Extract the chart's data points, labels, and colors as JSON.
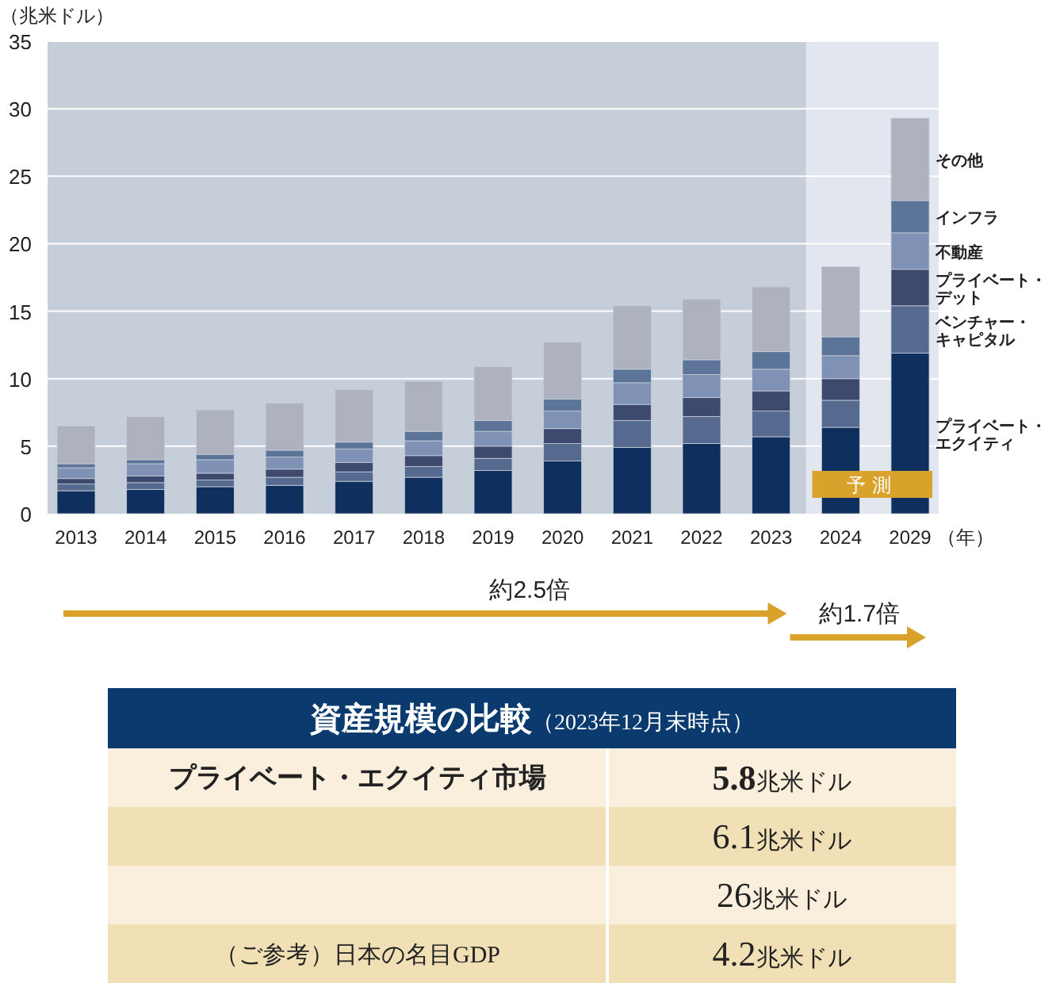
{
  "chart_data": {
    "type": "bar",
    "stacked": true,
    "ylabel": "（兆米ドル）",
    "xlabel": "（年）",
    "categories": [
      "2013",
      "2014",
      "2015",
      "2016",
      "2017",
      "2018",
      "2019",
      "2020",
      "2021",
      "2022",
      "2023",
      "2024",
      "2029"
    ],
    "series": [
      {
        "name": "プライベート・エクイティ",
        "color": "#0f2f5e",
        "values": [
          1.7,
          1.8,
          2.0,
          2.1,
          2.4,
          2.7,
          3.2,
          3.9,
          4.9,
          5.2,
          5.7,
          6.4,
          11.9
        ]
      },
      {
        "name": "ベンチャー・キャピタル",
        "color": "#56698e",
        "values": [
          0.5,
          0.5,
          0.5,
          0.6,
          0.7,
          0.8,
          0.9,
          1.3,
          2.0,
          2.0,
          1.9,
          2.0,
          3.5
        ]
      },
      {
        "name": "プライベート・デット",
        "color": "#3d4a6e",
        "values": [
          0.4,
          0.5,
          0.5,
          0.6,
          0.7,
          0.8,
          0.9,
          1.1,
          1.2,
          1.4,
          1.5,
          1.6,
          2.7
        ]
      },
      {
        "name": "不動産",
        "color": "#7f91b5",
        "values": [
          0.8,
          0.9,
          1.0,
          0.9,
          1.0,
          1.1,
          1.1,
          1.3,
          1.6,
          1.7,
          1.6,
          1.7,
          2.7
        ]
      },
      {
        "name": "インフラ",
        "color": "#5b7497",
        "values": [
          0.3,
          0.3,
          0.4,
          0.5,
          0.5,
          0.7,
          0.8,
          0.9,
          1.0,
          1.1,
          1.3,
          1.4,
          2.4
        ]
      },
      {
        "name": "その他",
        "color": "#aeb2bf",
        "values": [
          2.8,
          3.2,
          3.3,
          3.5,
          3.9,
          3.7,
          4.0,
          4.2,
          4.7,
          4.5,
          4.8,
          5.2,
          6.1
        ]
      }
    ],
    "ylim": [
      0,
      35
    ],
    "yticks": [
      0,
      5,
      10,
      15,
      20,
      25,
      30,
      35
    ],
    "grid": "y",
    "legend": "right",
    "bands": [
      {
        "axis": "x",
        "from": "2024",
        "to": "2029",
        "label": "予測",
        "color": "#e2e6ee"
      }
    ],
    "annotations": [
      "約2.5倍",
      "約1.7倍",
      "資産規模の比較（2023年12月末時点）",
      "プライベート・エクイティ市場",
      "5.8兆米ドル",
      "6.1兆米ドル",
      "26兆米ドル",
      "（ご参考）日本の名目GDP",
      "4.2兆米ドル"
    ]
  }
}
